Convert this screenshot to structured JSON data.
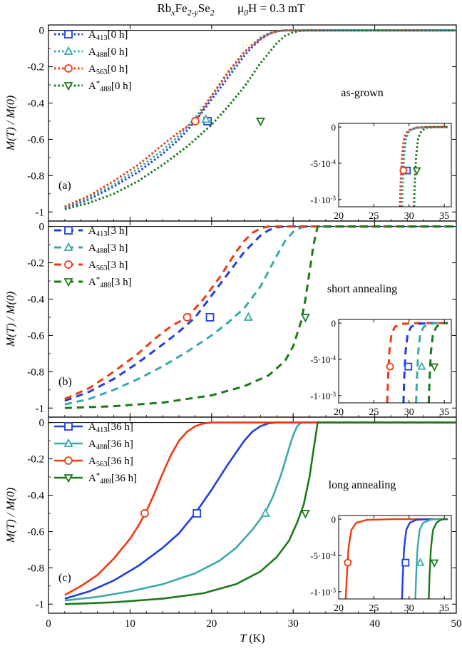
{
  "title": {
    "sample": "Rb_xFe_{2-y}Se_2",
    "field": "μ_0H = 0.3 mT"
  },
  "chart_data": [
    {
      "id": "a",
      "type": "line",
      "panel_label": "(a)",
      "annotation": "as-grown",
      "linestyle": "dotted",
      "xlabel": "",
      "ylabel": "M(T) / M(0)",
      "xlim": [
        0,
        50
      ],
      "ylim": [
        -1.05,
        0.03
      ],
      "yticks": [
        0,
        -0.2,
        -0.4,
        -0.6,
        -0.8,
        -1
      ],
      "ytick_labels": [
        "0",
        "-0.2",
        "-0.4",
        "-0.6",
        "-0.8",
        "-1"
      ],
      "legend_position": "top-left",
      "series": [
        {
          "name": "A_{413}[0 h]",
          "color": "#1f3fe0",
          "marker": "square",
          "x": [
            2,
            5,
            8,
            11,
            14,
            16,
            18,
            20,
            22,
            24,
            25,
            26,
            27,
            28,
            29,
            30,
            50
          ],
          "y": [
            -0.98,
            -0.93,
            -0.86,
            -0.78,
            -0.68,
            -0.6,
            -0.5,
            -0.38,
            -0.26,
            -0.14,
            -0.09,
            -0.05,
            -0.02,
            -0.005,
            0,
            0,
            0
          ],
          "marker_at": [
            19.5,
            -0.5
          ]
        },
        {
          "name": "A_{488}[0 h]",
          "color": "#3aaaa8",
          "marker": "triangle-up",
          "x": [
            2,
            5,
            8,
            11,
            14,
            16,
            18,
            20,
            22,
            24,
            25,
            26,
            27,
            28,
            29,
            30,
            50
          ],
          "y": [
            -0.975,
            -0.92,
            -0.85,
            -0.76,
            -0.66,
            -0.58,
            -0.48,
            -0.36,
            -0.24,
            -0.12,
            -0.08,
            -0.04,
            -0.015,
            -0.004,
            0,
            0,
            0
          ],
          "marker_at": [
            19.3,
            -0.49
          ]
        },
        {
          "name": "A_{563}[0 h]",
          "color": "#f03a10",
          "marker": "circle",
          "x": [
            2,
            5,
            8,
            11,
            14,
            16,
            18,
            20,
            22,
            24,
            25,
            26,
            27,
            28,
            29,
            30,
            50
          ],
          "y": [
            -0.97,
            -0.91,
            -0.83,
            -0.74,
            -0.63,
            -0.56,
            -0.5,
            -0.36,
            -0.23,
            -0.12,
            -0.08,
            -0.045,
            -0.02,
            -0.005,
            0,
            0,
            0
          ],
          "marker_at": [
            18,
            -0.5
          ]
        },
        {
          "name": "A^{*}_{488}[0 h]",
          "color": "#1a7a1a",
          "marker": "triangle-down",
          "x": [
            2,
            5,
            8,
            11,
            14,
            17,
            20,
            22,
            24,
            26,
            28,
            29,
            30,
            31,
            32,
            50
          ],
          "y": [
            -0.985,
            -0.95,
            -0.9,
            -0.83,
            -0.74,
            -0.64,
            -0.52,
            -0.42,
            -0.31,
            -0.18,
            -0.07,
            -0.03,
            -0.01,
            -0.002,
            0,
            0
          ],
          "marker_at": [
            26,
            -0.5
          ]
        }
      ],
      "inset": {
        "xlim": [
          20,
          36
        ],
        "ylim": [
          -0.0011,
          5e-05
        ],
        "xticks": [
          20,
          25,
          30,
          35
        ],
        "yticks": [
          0,
          -0.0005,
          -0.001
        ],
        "ytick_labels": [
          "0",
          "-5·10^{-4}",
          "-1·10^{-3}"
        ],
        "markers": [
          {
            "series": 0,
            "x": 29.7,
            "y": -0.0006
          },
          {
            "series": 2,
            "x": 29.2,
            "y": -0.0006
          },
          {
            "series": 3,
            "x": 31.1,
            "y": -0.0006
          }
        ],
        "curves": [
          {
            "series": 0,
            "x": [
              28.9,
              29.0,
              29.2,
              29.5,
              30,
              31,
              33,
              35.5
            ],
            "y": [
              -0.0011,
              -0.0008,
              -0.0004,
              -0.00015,
              -5e-05,
              -1e-05,
              0,
              0
            ]
          },
          {
            "series": 1,
            "x": [
              29.0,
              29.1,
              29.3,
              29.6,
              30.1,
              31,
              33,
              35.5
            ],
            "y": [
              -0.0011,
              -0.0008,
              -0.0004,
              -0.00015,
              -5e-05,
              -1e-05,
              0,
              0
            ]
          },
          {
            "series": 2,
            "x": [
              28.7,
              28.8,
              29.0,
              29.3,
              29.8,
              31,
              33,
              35.5
            ],
            "y": [
              -0.0011,
              -0.0008,
              -0.0004,
              -0.00015,
              -5e-05,
              -1e-05,
              0,
              0
            ]
          },
          {
            "series": 3,
            "x": [
              30.7,
              30.8,
              31.0,
              31.3,
              31.8,
              32.5,
              34,
              35.5
            ],
            "y": [
              -0.0011,
              -0.0008,
              -0.0004,
              -0.00015,
              -5e-05,
              -1e-05,
              0,
              0
            ]
          }
        ]
      }
    },
    {
      "id": "b",
      "type": "line",
      "panel_label": "(b)",
      "annotation": "short annealing",
      "linestyle": "dashed",
      "xlabel": "",
      "ylabel": "M(T) / M(0)",
      "xlim": [
        0,
        50
      ],
      "ylim": [
        -1.05,
        0.03
      ],
      "yticks": [
        0,
        -0.2,
        -0.4,
        -0.6,
        -0.8,
        -1
      ],
      "ytick_labels": [
        "0",
        "-0.2",
        "-0.4",
        "-0.6",
        "-0.8",
        "-1"
      ],
      "legend_position": "top-left",
      "series": [
        {
          "name": "A_{413}[3 h]",
          "color": "#1f3fe0",
          "marker": "square",
          "x": [
            2,
            5,
            8,
            11,
            14,
            16,
            18,
            20,
            22,
            24,
            26,
            27,
            28,
            29,
            30,
            50
          ],
          "y": [
            -0.96,
            -0.91,
            -0.84,
            -0.75,
            -0.65,
            -0.58,
            -0.5,
            -0.38,
            -0.26,
            -0.14,
            -0.05,
            -0.02,
            -0.005,
            0,
            0,
            0
          ],
          "marker_at": [
            19.8,
            -0.5
          ]
        },
        {
          "name": "A_{488}[3 h]",
          "color": "#3aaaa8",
          "marker": "triangle-up",
          "x": [
            2,
            5,
            8,
            11,
            14,
            17,
            20,
            22,
            24,
            26,
            28,
            29,
            30,
            31,
            32,
            50
          ],
          "y": [
            -0.98,
            -0.95,
            -0.9,
            -0.84,
            -0.77,
            -0.69,
            -0.6,
            -0.53,
            -0.45,
            -0.33,
            -0.16,
            -0.08,
            -0.03,
            -0.005,
            0,
            0
          ],
          "marker_at": [
            24.5,
            -0.5
          ]
        },
        {
          "name": "A_{563}[3 h]",
          "color": "#f03a10",
          "marker": "circle",
          "x": [
            2,
            5,
            8,
            11,
            13,
            15,
            17,
            19,
            21,
            23,
            24,
            25,
            26,
            27,
            50
          ],
          "y": [
            -0.95,
            -0.89,
            -0.8,
            -0.7,
            -0.62,
            -0.55,
            -0.5,
            -0.4,
            -0.28,
            -0.14,
            -0.08,
            -0.035,
            -0.01,
            0,
            0
          ],
          "marker_at": [
            17,
            -0.5
          ]
        },
        {
          "name": "A^{*}_{488}[3 h]",
          "color": "#1a7a1a",
          "marker": "triangle-down",
          "x": [
            2,
            8,
            14,
            20,
            24,
            27,
            29,
            30,
            31,
            31.5,
            32,
            32.5,
            33,
            50
          ],
          "y": [
            -1.0,
            -0.99,
            -0.97,
            -0.93,
            -0.88,
            -0.82,
            -0.74,
            -0.66,
            -0.52,
            -0.4,
            -0.25,
            -0.1,
            0,
            0
          ],
          "marker_at": [
            31.5,
            -0.5
          ]
        }
      ],
      "inset": {
        "xlim": [
          20,
          36
        ],
        "ylim": [
          -0.0011,
          5e-05
        ],
        "xticks": [
          20,
          25,
          30,
          35
        ],
        "yticks": [
          0,
          -0.0005,
          -0.001
        ],
        "ytick_labels": [
          "0",
          "-5·10^{-4}",
          "-1·10^{-3}"
        ],
        "markers": [
          {
            "series": 2,
            "x": 27.3,
            "y": -0.0006
          },
          {
            "series": 0,
            "x": 29.9,
            "y": -0.0006
          },
          {
            "series": 1,
            "x": 31.8,
            "y": -0.0006
          },
          {
            "series": 3,
            "x": 33.6,
            "y": -0.0006
          }
        ],
        "curves": [
          {
            "series": 2,
            "x": [
              26.9,
              27.0,
              27.2,
              27.5,
              28,
              29,
              31,
              35.5
            ],
            "y": [
              -0.0011,
              -0.0008,
              -0.0004,
              -0.00015,
              -5e-05,
              -1e-05,
              0,
              0
            ]
          },
          {
            "series": 0,
            "x": [
              29.2,
              29.3,
              29.5,
              29.8,
              30.3,
              31.3,
              33,
              35.5
            ],
            "y": [
              -0.0011,
              -0.0008,
              -0.0004,
              -0.00015,
              -5e-05,
              -1e-05,
              0,
              0
            ]
          },
          {
            "series": 1,
            "x": [
              31.0,
              31.1,
              31.3,
              31.6,
              32.1,
              33,
              34,
              35.5
            ],
            "y": [
              -0.0011,
              -0.0008,
              -0.0004,
              -0.00015,
              -5e-05,
              -1e-05,
              0,
              0
            ]
          },
          {
            "series": 3,
            "x": [
              32.8,
              32.9,
              33.1,
              33.4,
              33.9,
              34.5,
              35,
              35.5
            ],
            "y": [
              -0.0011,
              -0.0008,
              -0.0004,
              -0.00015,
              -5e-05,
              -1e-05,
              0,
              0
            ]
          }
        ]
      }
    },
    {
      "id": "c",
      "type": "line",
      "panel_label": "(c)",
      "annotation": "long annealing",
      "linestyle": "solid",
      "xlabel": "T (K)",
      "ylabel": "M(T) / M(0)",
      "xlim": [
        0,
        50
      ],
      "ylim": [
        -1.05,
        0.03
      ],
      "xticks": [
        0,
        10,
        20,
        30,
        40,
        50
      ],
      "xtick_labels": [
        "0",
        "10",
        "20",
        "30",
        "40",
        "50"
      ],
      "yticks": [
        0,
        -0.2,
        -0.4,
        -0.6,
        -0.8,
        -1
      ],
      "ytick_labels": [
        "0",
        "-0.2",
        "-0.4",
        "-0.6",
        "-0.8",
        "-1"
      ],
      "legend_position": "top-left",
      "series": [
        {
          "name": "A_{413}[36 h]",
          "color": "#1f3fe0",
          "marker": "square",
          "x": [
            2,
            5,
            8,
            11,
            14,
            16,
            18,
            20,
            22,
            24,
            25,
            26,
            27,
            28,
            50
          ],
          "y": [
            -0.97,
            -0.93,
            -0.87,
            -0.79,
            -0.69,
            -0.61,
            -0.5,
            -0.37,
            -0.23,
            -0.1,
            -0.05,
            -0.02,
            -0.004,
            0,
            0
          ],
          "marker_at": [
            18.2,
            -0.5
          ]
        },
        {
          "name": "A_{488}[36 h]",
          "color": "#3aaaa8",
          "marker": "triangle-up",
          "x": [
            2,
            6,
            10,
            14,
            18,
            21,
            23,
            25,
            26.5,
            27.5,
            28.5,
            29.5,
            30,
            30.5,
            31,
            50
          ],
          "y": [
            -0.98,
            -0.96,
            -0.93,
            -0.89,
            -0.83,
            -0.76,
            -0.69,
            -0.59,
            -0.5,
            -0.41,
            -0.29,
            -0.14,
            -0.07,
            -0.02,
            0,
            0
          ],
          "marker_at": [
            26.6,
            -0.5
          ]
        },
        {
          "name": "A_{563}[36 h]",
          "color": "#f03a10",
          "marker": "circle",
          "x": [
            2,
            4,
            6,
            8,
            10,
            11,
            12,
            13,
            14,
            15,
            16,
            17,
            18,
            19,
            20,
            50
          ],
          "y": [
            -0.95,
            -0.9,
            -0.84,
            -0.75,
            -0.64,
            -0.57,
            -0.49,
            -0.39,
            -0.28,
            -0.18,
            -0.1,
            -0.05,
            -0.02,
            -0.005,
            0,
            0
          ],
          "marker_at": [
            11.8,
            -0.5
          ]
        },
        {
          "name": "A^{*}_{488}[36 h]",
          "color": "#1a7a1a",
          "marker": "triangle-down",
          "x": [
            2,
            8,
            14,
            19,
            23,
            26,
            28,
            29.5,
            30.5,
            31.3,
            32,
            32.5,
            33,
            50
          ],
          "y": [
            -1.0,
            -0.99,
            -0.97,
            -0.94,
            -0.89,
            -0.82,
            -0.74,
            -0.65,
            -0.55,
            -0.45,
            -0.3,
            -0.15,
            0,
            0
          ],
          "marker_at": [
            31.5,
            -0.5
          ]
        }
      ],
      "inset": {
        "xlim": [
          20,
          36
        ],
        "ylim": [
          -0.0011,
          5e-05
        ],
        "xticks": [
          20,
          25,
          30,
          35
        ],
        "yticks": [
          0,
          -0.0005,
          -0.001
        ],
        "ytick_labels": [
          "0",
          "-5·10^{-4}",
          "-1·10^{-3}"
        ],
        "markers": [
          {
            "series": 2,
            "x": 21.3,
            "y": -0.0006
          },
          {
            "series": 0,
            "x": 29.5,
            "y": -0.0006
          },
          {
            "series": 1,
            "x": 31.6,
            "y": -0.0006
          },
          {
            "series": 3,
            "x": 33.6,
            "y": -0.0006
          }
        ],
        "curves": [
          {
            "series": 2,
            "x": [
              21.0,
              21.15,
              21.4,
              21.8,
              22.5,
              24,
              28,
              35.5
            ],
            "y": [
              -0.0011,
              -0.0008,
              -0.0004,
              -0.00015,
              -5e-05,
              -1e-05,
              0,
              0
            ]
          },
          {
            "series": 0,
            "x": [
              29.0,
              29.1,
              29.3,
              29.6,
              30.1,
              31,
              33,
              35.5
            ],
            "y": [
              -0.0011,
              -0.0008,
              -0.0004,
              -0.00015,
              -5e-05,
              -1e-05,
              0,
              0
            ]
          },
          {
            "series": 1,
            "x": [
              30.9,
              31.0,
              31.2,
              31.5,
              32.0,
              33,
              34,
              35.5
            ],
            "y": [
              -0.0011,
              -0.0008,
              -0.0004,
              -0.00015,
              -5e-05,
              -1e-05,
              0,
              0
            ]
          },
          {
            "series": 3,
            "x": [
              32.8,
              32.9,
              33.1,
              33.4,
              33.9,
              34.5,
              35,
              35.5
            ],
            "y": [
              -0.0011,
              -0.0008,
              -0.0004,
              -0.00015,
              -5e-05,
              -1e-05,
              0,
              0
            ]
          }
        ]
      }
    }
  ]
}
